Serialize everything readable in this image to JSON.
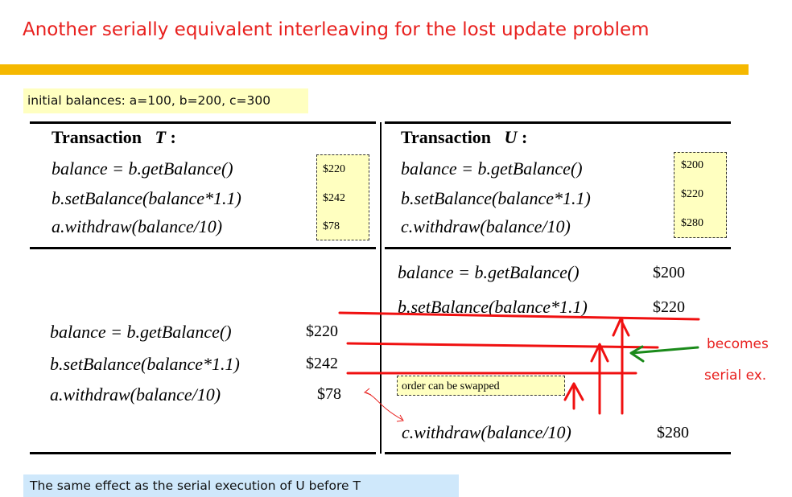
{
  "title": "Another serially equivalent interleaving for the lost update problem",
  "initial_balances": "initial balances:  a=100, b=200, c=300",
  "transaction_t": {
    "label": "Transaction",
    "name": "T",
    "colon": ":",
    "ops": [
      "balance = b.getBalance()",
      "b.setBalance(balance*1.1)",
      "a.withdraw(balance/10)"
    ],
    "values": [
      "$220",
      "$242",
      "$78"
    ]
  },
  "transaction_u": {
    "label": "Transaction",
    "name": "U",
    "colon": ":",
    "ops": [
      "balance = b.getBalance()",
      "b.setBalance(balance*1.1)",
      "c.withdraw(balance/10)"
    ],
    "values": [
      "$200",
      "$220",
      "$280"
    ]
  },
  "interleaving": {
    "u_rows": [
      {
        "op": "balance = b.getBalance()",
        "value": "$200"
      },
      {
        "op": "b.setBalance(balance*1.1)",
        "value": "$220"
      },
      {
        "op": "c.withdraw(balance/10)",
        "value": "$280"
      }
    ],
    "t_rows": [
      {
        "op": "balance =  b.getBalance()",
        "value": "$220"
      },
      {
        "op": "b.setBalance(balance*1.1)",
        "value": "$242"
      },
      {
        "op": "a.withdraw(balance/10)",
        "value": "$78"
      }
    ]
  },
  "annotations": {
    "order_note": "order can be swapped",
    "becomes": "becomes",
    "serial_ex": "serial ex."
  },
  "footer": "The same effect as the serial execution of U before T",
  "colors": {
    "title": "#e8201e",
    "bar": "#f5b800",
    "note_bg": "#ffffc0",
    "footer_bg": "#cfe8fb",
    "red": "#f01010",
    "green": "#1a8a1a"
  }
}
